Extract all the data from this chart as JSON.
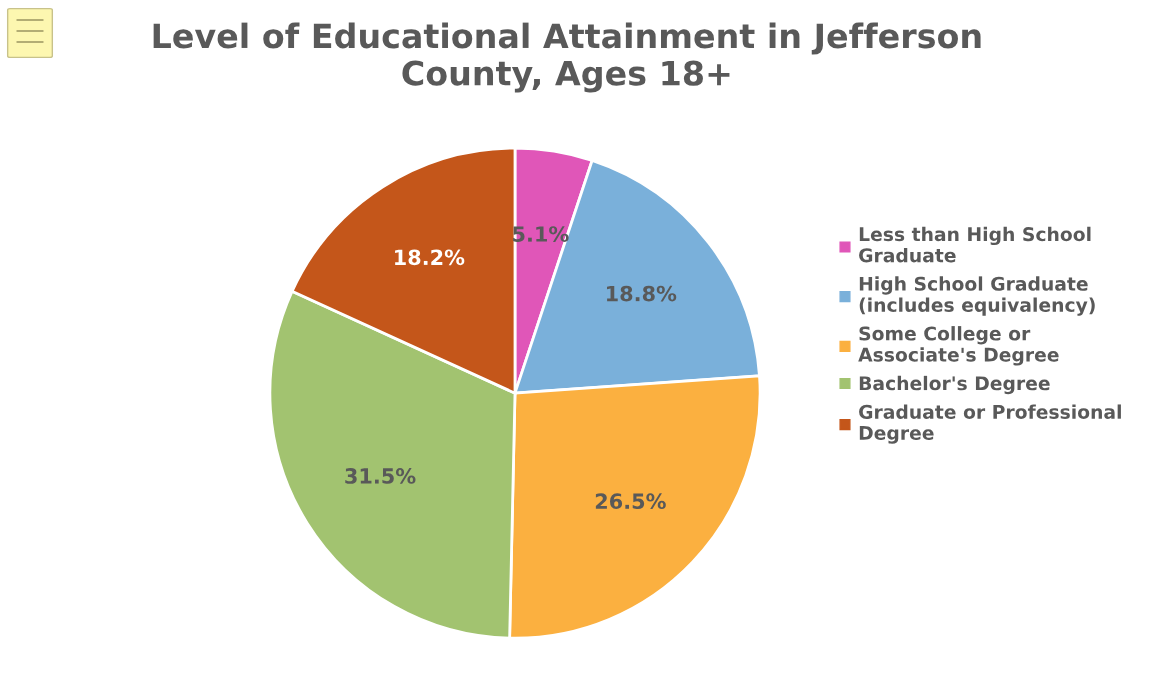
{
  "chart_data": {
    "type": "pie",
    "title": "Level of Educational Attainment in Jefferson County, Ages 18+",
    "categories": [
      "Less than High School Graduate",
      "High School Graduate (includes equivalency)",
      "Some College or Associate's Degree",
      "Bachelor's Degree",
      "Graduate or Professional Degree"
    ],
    "values": [
      5.1,
      18.8,
      26.5,
      31.5,
      18.2
    ],
    "value_labels": [
      "5.1%",
      "18.8%",
      "26.5%",
      "31.5%",
      "18.2%"
    ],
    "colors": [
      "#e056b8",
      "#7ab0da",
      "#fbb040",
      "#a2c370",
      "#c4561a"
    ],
    "legend": "right"
  }
}
